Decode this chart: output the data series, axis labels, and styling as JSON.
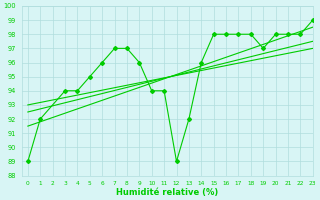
{
  "line_volatile": {
    "x": [
      0,
      1,
      3,
      4,
      5,
      6,
      7,
      8,
      9,
      10,
      11,
      12,
      13,
      14,
      15,
      16,
      17,
      18,
      19,
      20,
      21,
      22,
      23
    ],
    "y": [
      89,
      92,
      94,
      94,
      95,
      96,
      97,
      97,
      96,
      94,
      94,
      89,
      92,
      96,
      98,
      98,
      98,
      98,
      97,
      98,
      98,
      98,
      99
    ]
  },
  "line_smooth1": {
    "x": [
      0,
      23
    ],
    "y": [
      91.5,
      98.5
    ]
  },
  "line_smooth2": {
    "x": [
      0,
      23
    ],
    "y": [
      92.5,
      97.5
    ]
  },
  "line_smooth3": {
    "x": [
      0,
      23
    ],
    "y": [
      93.0,
      97.0
    ]
  },
  "line_color": "#00cc00",
  "bg_color": "#d8f5f5",
  "grid_color": "#b0dede",
  "xlabel": "Humidité relative (%)",
  "ylim": [
    88,
    100
  ],
  "xlim": [
    -0.5,
    23
  ],
  "yticks": [
    88,
    89,
    90,
    91,
    92,
    93,
    94,
    95,
    96,
    97,
    98,
    99,
    100
  ],
  "xticks": [
    0,
    1,
    2,
    3,
    4,
    5,
    6,
    7,
    8,
    9,
    10,
    11,
    12,
    13,
    14,
    15,
    16,
    17,
    18,
    19,
    20,
    21,
    22,
    23
  ]
}
